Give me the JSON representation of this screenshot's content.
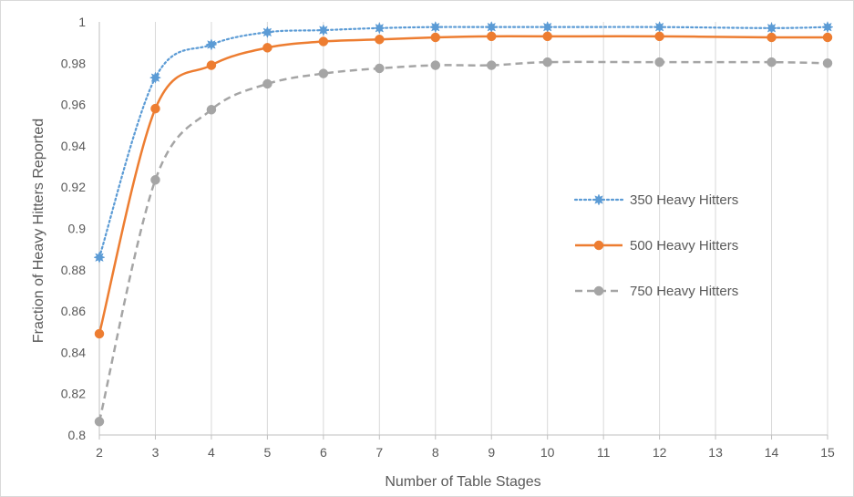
{
  "chart_data": {
    "type": "line",
    "title": "",
    "xlabel": "Number of Table Stages",
    "ylabel": "Fraction of Heavy Hitters Reported",
    "x_ticks": [
      2,
      3,
      4,
      5,
      6,
      7,
      8,
      9,
      10,
      11,
      12,
      13,
      14,
      15
    ],
    "xlim": [
      2,
      15
    ],
    "ylim": [
      0.8,
      1.0
    ],
    "y_ticks": [
      "0.8",
      "0.82",
      "0.84",
      "0.86",
      "0.88",
      "0.9",
      "0.92",
      "0.94",
      "0.96",
      "0.98",
      "1"
    ],
    "grid": "vertical",
    "legend_position": "right",
    "series": [
      {
        "name": "350 Heavy Hitters",
        "color": "#5B9BD5",
        "line_style": "dotted",
        "marker": "star",
        "x": [
          2,
          3,
          4,
          5,
          6,
          7,
          8,
          9,
          10,
          12,
          14,
          15
        ],
        "y": [
          0.886,
          0.973,
          0.989,
          0.995,
          0.996,
          0.997,
          0.9975,
          0.9975,
          0.9975,
          0.9975,
          0.997,
          0.9975
        ]
      },
      {
        "name": "500 Heavy Hitters",
        "color": "#ED7D31",
        "line_style": "solid",
        "marker": "circle",
        "x": [
          2,
          3,
          4,
          5,
          6,
          7,
          8,
          9,
          10,
          12,
          14,
          15
        ],
        "y": [
          0.849,
          0.958,
          0.979,
          0.9875,
          0.9905,
          0.9915,
          0.9925,
          0.993,
          0.993,
          0.993,
          0.9925,
          0.9925
        ]
      },
      {
        "name": "750 Heavy Hitters",
        "color": "#A5A5A5",
        "line_style": "dashed",
        "marker": "circle",
        "x": [
          2,
          3,
          4,
          5,
          6,
          7,
          8,
          9,
          10,
          12,
          14,
          15
        ],
        "y": [
          0.8065,
          0.9235,
          0.9575,
          0.97,
          0.975,
          0.9775,
          0.979,
          0.979,
          0.9805,
          0.9805,
          0.9805,
          0.98
        ]
      }
    ]
  }
}
